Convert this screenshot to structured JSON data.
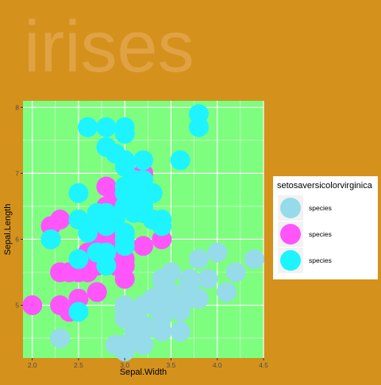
{
  "chart_data": {
    "type": "scatter",
    "title": "irises",
    "xlabel": "Sepal.Width",
    "ylabel": "Sepal.Length",
    "xlim": [
      1.9,
      4.5
    ],
    "ylim": [
      4.2,
      8.1
    ],
    "x_ticks": [
      2.0,
      2.5,
      3.0,
      3.5,
      4.0,
      4.5
    ],
    "x_tick_labels": [
      "2.0",
      "2.5",
      "3.0",
      "3.5",
      "4.0",
      "4.5"
    ],
    "y_ticks": [
      5,
      6,
      7,
      8
    ],
    "y_tick_labels": [
      "5",
      "6",
      "7",
      "8"
    ],
    "grid": true,
    "legend_position": "right",
    "legend": {
      "title": "setosaversicolorvirginica",
      "entries": [
        "species",
        "species",
        "species"
      ]
    },
    "colors": {
      "background": "#d4921d",
      "panel": "#7dfe7f",
      "grid": "#ffffff",
      "title": "#ebae66",
      "setosa": "#96dbea",
      "versicolor": "#ff55fb",
      "virginica": "#1ef4ff"
    },
    "series": [
      {
        "color_key": "setosa",
        "x": [
          3.5,
          3.0,
          3.2,
          3.1,
          3.6,
          3.9,
          3.4,
          3.4,
          2.9,
          3.1,
          3.7,
          3.4,
          3.0,
          3.0,
          4.0,
          4.4,
          3.9,
          3.5,
          3.8,
          3.8,
          3.4,
          3.7,
          3.6,
          3.3,
          3.4,
          3.0,
          3.4,
          3.5,
          3.4,
          3.2,
          3.1,
          3.4,
          4.1,
          4.2,
          3.1,
          3.2,
          3.5,
          3.6,
          3.0,
          3.4,
          3.5,
          2.3,
          3.2,
          3.5,
          3.8,
          3.0,
          3.8,
          3.2,
          3.7,
          3.3
        ],
        "y": [
          5.1,
          4.9,
          4.7,
          4.6,
          5.0,
          5.4,
          4.6,
          5.0,
          4.4,
          4.9,
          5.4,
          4.8,
          4.8,
          4.3,
          5.8,
          5.7,
          5.4,
          5.1,
          5.7,
          5.1,
          5.4,
          5.1,
          4.6,
          5.1,
          4.8,
          5.0,
          5.0,
          5.2,
          5.2,
          4.7,
          4.8,
          5.4,
          5.2,
          5.5,
          4.9,
          5.0,
          5.5,
          4.9,
          4.4,
          5.1,
          5.0,
          4.5,
          4.4,
          5.0,
          5.1,
          4.8,
          5.1,
          4.6,
          5.3,
          5.0
        ]
      },
      {
        "color_key": "versicolor",
        "x": [
          3.2,
          3.2,
          3.1,
          2.3,
          2.8,
          2.8,
          3.3,
          2.4,
          2.9,
          2.7,
          2.0,
          3.0,
          2.2,
          2.9,
          2.9,
          3.1,
          3.0,
          2.7,
          2.2,
          2.5,
          3.2,
          2.8,
          2.5,
          2.8,
          2.9,
          3.0,
          2.8,
          3.0,
          2.9,
          2.6,
          2.4,
          2.4,
          2.7,
          2.7,
          3.0,
          3.4,
          3.1,
          2.3,
          3.0,
          2.5,
          2.6,
          3.0,
          2.6,
          2.3,
          2.7,
          3.0,
          2.9,
          2.9,
          2.5,
          2.8
        ],
        "y": [
          7.0,
          6.4,
          6.9,
          5.5,
          6.5,
          5.7,
          6.3,
          4.9,
          6.6,
          5.2,
          5.0,
          5.9,
          6.0,
          6.1,
          5.6,
          6.7,
          5.6,
          5.8,
          6.2,
          5.6,
          5.9,
          6.1,
          6.3,
          6.1,
          6.4,
          6.6,
          6.8,
          6.7,
          6.0,
          5.7,
          5.5,
          5.5,
          5.8,
          6.0,
          5.4,
          6.0,
          6.7,
          6.3,
          5.6,
          5.5,
          5.5,
          6.1,
          5.8,
          5.0,
          5.6,
          5.7,
          5.7,
          6.2,
          5.1,
          5.7
        ]
      },
      {
        "color_key": "virginica",
        "x": [
          3.3,
          2.7,
          3.0,
          2.9,
          3.0,
          3.0,
          2.5,
          2.9,
          2.5,
          3.6,
          3.2,
          2.7,
          3.0,
          2.5,
          2.8,
          3.2,
          3.0,
          3.8,
          2.6,
          2.2,
          3.2,
          2.8,
          2.8,
          2.7,
          3.3,
          3.2,
          2.8,
          3.0,
          2.8,
          3.0,
          2.8,
          3.8,
          2.8,
          2.8,
          2.6,
          3.0,
          3.4,
          3.1,
          3.0,
          3.1,
          3.1,
          3.1,
          2.7,
          3.2,
          3.3,
          3.0,
          2.5,
          3.0,
          3.4,
          3.0
        ],
        "y": [
          6.3,
          5.8,
          7.1,
          6.3,
          6.5,
          7.6,
          4.9,
          7.3,
          6.7,
          7.2,
          6.5,
          6.4,
          6.8,
          5.7,
          5.8,
          6.4,
          6.5,
          7.7,
          7.7,
          6.0,
          6.9,
          5.6,
          7.7,
          6.3,
          6.7,
          7.2,
          6.2,
          6.1,
          6.4,
          7.2,
          7.4,
          7.9,
          6.4,
          6.3,
          6.1,
          7.7,
          6.3,
          6.4,
          6.0,
          6.9,
          6.7,
          6.9,
          5.8,
          6.8,
          6.7,
          6.7,
          6.3,
          6.5,
          6.2,
          5.9
        ]
      }
    ]
  }
}
